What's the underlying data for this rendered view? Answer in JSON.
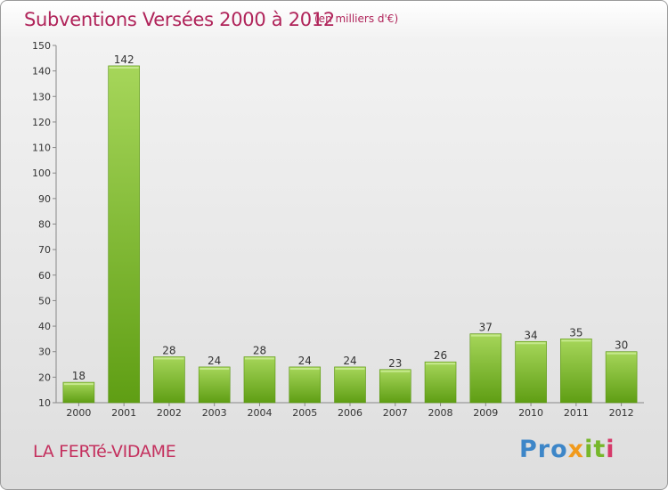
{
  "chart_data": {
    "type": "bar",
    "title": "Subventions Versées 2000 à 2012",
    "unit": "(en milliers d'€)",
    "categories": [
      "2000",
      "2001",
      "2002",
      "2003",
      "2004",
      "2005",
      "2006",
      "2007",
      "2008",
      "2009",
      "2010",
      "2011",
      "2012"
    ],
    "values": [
      18,
      142,
      28,
      24,
      28,
      24,
      24,
      23,
      26,
      37,
      34,
      35,
      30
    ],
    "ylim": [
      10,
      150
    ],
    "yticks": [
      10,
      20,
      30,
      40,
      50,
      60,
      70,
      80,
      90,
      100,
      110,
      120,
      130,
      140,
      150
    ],
    "grid": false,
    "legend": "none",
    "colors": {
      "bar_light": "#9fd04f",
      "bar_dark": "#5f9e14",
      "label": "#333333"
    }
  },
  "footer": {
    "commune": "LA FERTé-VIDAME",
    "logo": {
      "p1": "Pro",
      "p2": "x",
      "p3": "it",
      "p4": "i"
    }
  }
}
